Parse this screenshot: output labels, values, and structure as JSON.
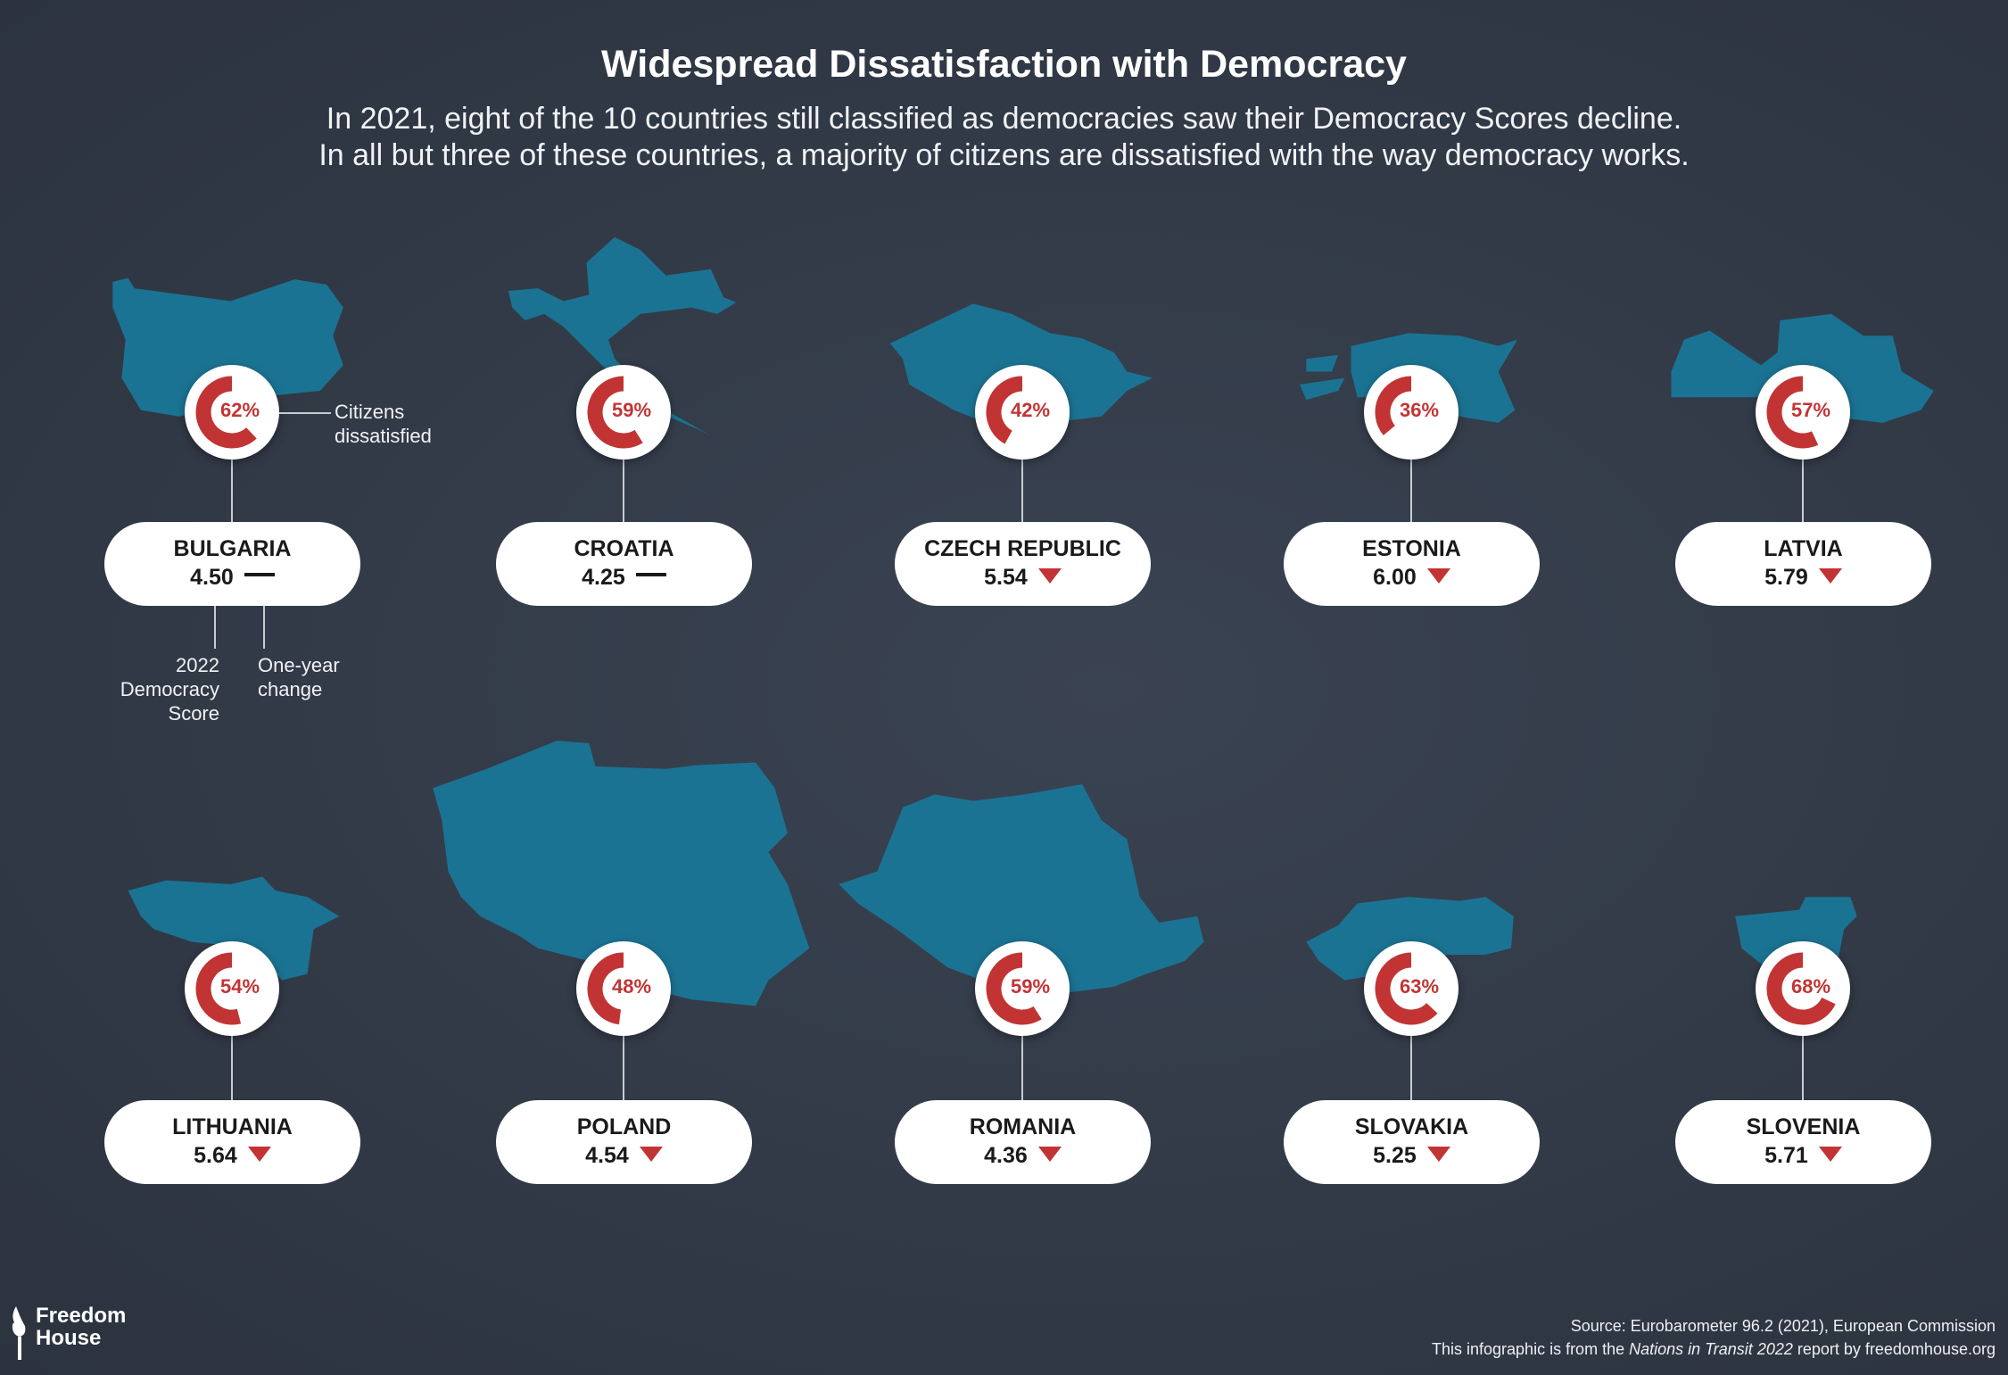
{
  "title": "Widespread Dissatisfaction with Democracy",
  "subtitle": [
    "In 2021, eight of the 10 countries still classified as democracies saw their Democracy Scores decline.",
    "In all but three of these countries, a majority of citizens are dissatisfied with the way democracy works."
  ],
  "colors": {
    "map": "#1b7393",
    "accent": "#c23434",
    "background": "#343c4a"
  },
  "legend": {
    "citizens_dissatisfied": [
      "Citizens",
      "dissatisfied"
    ],
    "democracy_score": [
      "2022",
      "Democracy",
      "Score"
    ],
    "one_year_change": [
      "One-year",
      "change"
    ]
  },
  "countries": [
    {
      "name": "BULGARIA",
      "score": "4.50",
      "change": "no-change",
      "dissatisfied_pct": 62,
      "label": "62%"
    },
    {
      "name": "CROATIA",
      "score": "4.25",
      "change": "no-change",
      "dissatisfied_pct": 59,
      "label": "59%"
    },
    {
      "name": "CZECH REPUBLIC",
      "score": "5.54",
      "change": "decline",
      "dissatisfied_pct": 42,
      "label": "42%"
    },
    {
      "name": "ESTONIA",
      "score": "6.00",
      "change": "decline",
      "dissatisfied_pct": 36,
      "label": "36%"
    },
    {
      "name": "LATVIA",
      "score": "5.79",
      "change": "decline",
      "dissatisfied_pct": 57,
      "label": "57%"
    },
    {
      "name": "LITHUANIA",
      "score": "5.64",
      "change": "decline",
      "dissatisfied_pct": 54,
      "label": "54%"
    },
    {
      "name": "POLAND",
      "score": "4.54",
      "change": "decline",
      "dissatisfied_pct": 48,
      "label": "48%"
    },
    {
      "name": "ROMANIA",
      "score": "4.36",
      "change": "decline",
      "dissatisfied_pct": 59,
      "label": "59%"
    },
    {
      "name": "SLOVAKIA",
      "score": "5.25",
      "change": "decline",
      "dissatisfied_pct": 63,
      "label": "63%"
    },
    {
      "name": "SLOVENIA",
      "score": "5.71",
      "change": "decline",
      "dissatisfied_pct": 68,
      "label": "68%"
    }
  ],
  "footer": {
    "logo": [
      "Freedom",
      "House"
    ],
    "source": "Source: Eurobarometer 96.2 (2021), European Commission",
    "credit_prefix": "This infographic is from the ",
    "credit_italic": "Nations in Transit 2022",
    "credit_suffix": " report by freedomhouse.org"
  }
}
